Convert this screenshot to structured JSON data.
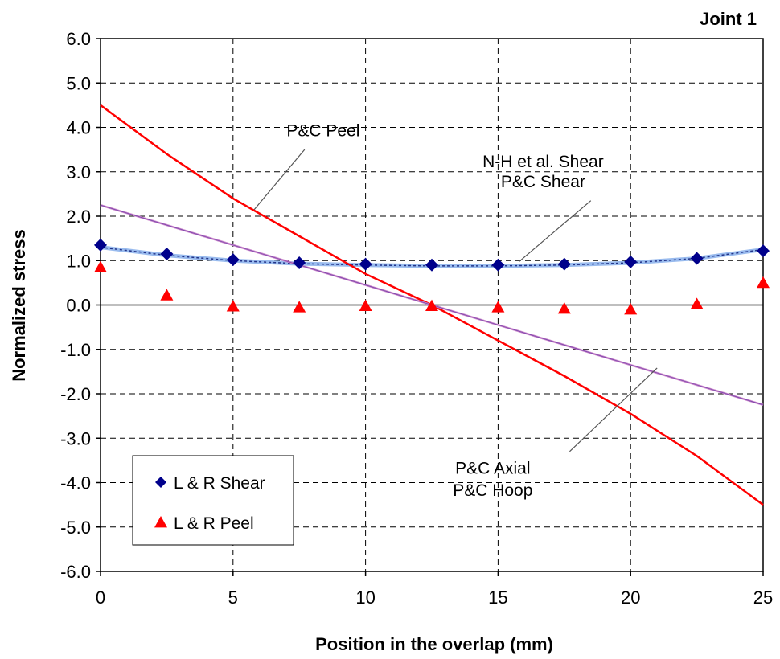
{
  "chart_data": {
    "type": "line",
    "title": "Joint 1",
    "xlabel": "Position in the overlap (mm)",
    "ylabel": "Normalized stress",
    "xlim": [
      0,
      25
    ],
    "ylim": [
      -6,
      6
    ],
    "xticks": [
      0,
      5,
      10,
      15,
      20,
      25
    ],
    "yticks": [
      -6,
      -5,
      -4,
      -3,
      -2,
      -1,
      0,
      1,
      2,
      3,
      4,
      5,
      6
    ],
    "xtick_labels": [
      "0",
      "5",
      "10",
      "15",
      "20",
      "25"
    ],
    "ytick_labels": [
      "-6.0",
      "-5.0",
      "-4.0",
      "-3.0",
      "-2.0",
      "-1.0",
      "0.0",
      "1.0",
      "2.0",
      "3.0",
      "4.0",
      "5.0",
      "6.0"
    ],
    "grid": true,
    "legend_position": "bottom-left",
    "series": [
      {
        "name": "L & R Shear",
        "style": "markers",
        "marker": "diamond",
        "color": "#00008B",
        "x": [
          0,
          2.5,
          5,
          7.5,
          10,
          12.5,
          15,
          17.5,
          20,
          22.5,
          25
        ],
        "y": [
          1.35,
          1.15,
          1.02,
          0.95,
          0.92,
          0.9,
          0.9,
          0.92,
          0.97,
          1.05,
          1.22
        ]
      },
      {
        "name": "L & R Peel",
        "style": "markers",
        "marker": "triangle",
        "color": "#FF0000",
        "x": [
          0,
          2.5,
          5,
          7.5,
          10,
          12.5,
          15,
          17.5,
          20,
          22.5,
          25
        ],
        "y": [
          0.85,
          0.22,
          -0.03,
          -0.05,
          -0.02,
          -0.02,
          -0.05,
          -0.08,
          -0.1,
          0.02,
          0.5
        ]
      },
      {
        "style": "line",
        "color": "#6699DD",
        "x": [
          0,
          2.5,
          5,
          7.5,
          10,
          12.5,
          15,
          17.5,
          20,
          22.5,
          25
        ],
        "y": [
          1.3,
          1.12,
          1.0,
          0.93,
          0.9,
          0.88,
          0.88,
          0.9,
          0.95,
          1.05,
          1.25
        ]
      },
      {
        "style": "line",
        "color": "#FF0000",
        "x": [
          0,
          2.5,
          5,
          7.5,
          10,
          12.5,
          15,
          17.5,
          20,
          22.5,
          25
        ],
        "y": [
          4.5,
          3.4,
          2.4,
          1.55,
          0.7,
          0.0,
          -0.8,
          -1.6,
          -2.45,
          -3.4,
          -4.5
        ]
      },
      {
        "style": "line",
        "color": "#CC88CC",
        "x": [
          0,
          12.5,
          25
        ],
        "y": [
          2.25,
          0.0,
          -2.25
        ]
      }
    ],
    "annotations": [
      {
        "text": "P&C Peel",
        "x": 8.4,
        "y": 3.8,
        "arrow_to": [
          5.8,
          2.15
        ],
        "arrow_from": [
          7.7,
          3.5
        ]
      },
      {
        "text": "N-H et al. Shear",
        "x": 16.7,
        "y": 3.1,
        "arrow_to": [
          15.8,
          0.98
        ],
        "arrow_from": [
          18.5,
          2.35
        ]
      },
      {
        "text": "P&C Shear",
        "x": 16.7,
        "y": 2.65
      },
      {
        "text": "P&C Axial",
        "x": 14.8,
        "y": -3.8,
        "arrow_to": [
          21.0,
          -1.42
        ],
        "arrow_from": [
          17.7,
          -3.3
        ]
      },
      {
        "text": "P&C Hoop",
        "x": 14.8,
        "y": -4.3
      }
    ]
  }
}
